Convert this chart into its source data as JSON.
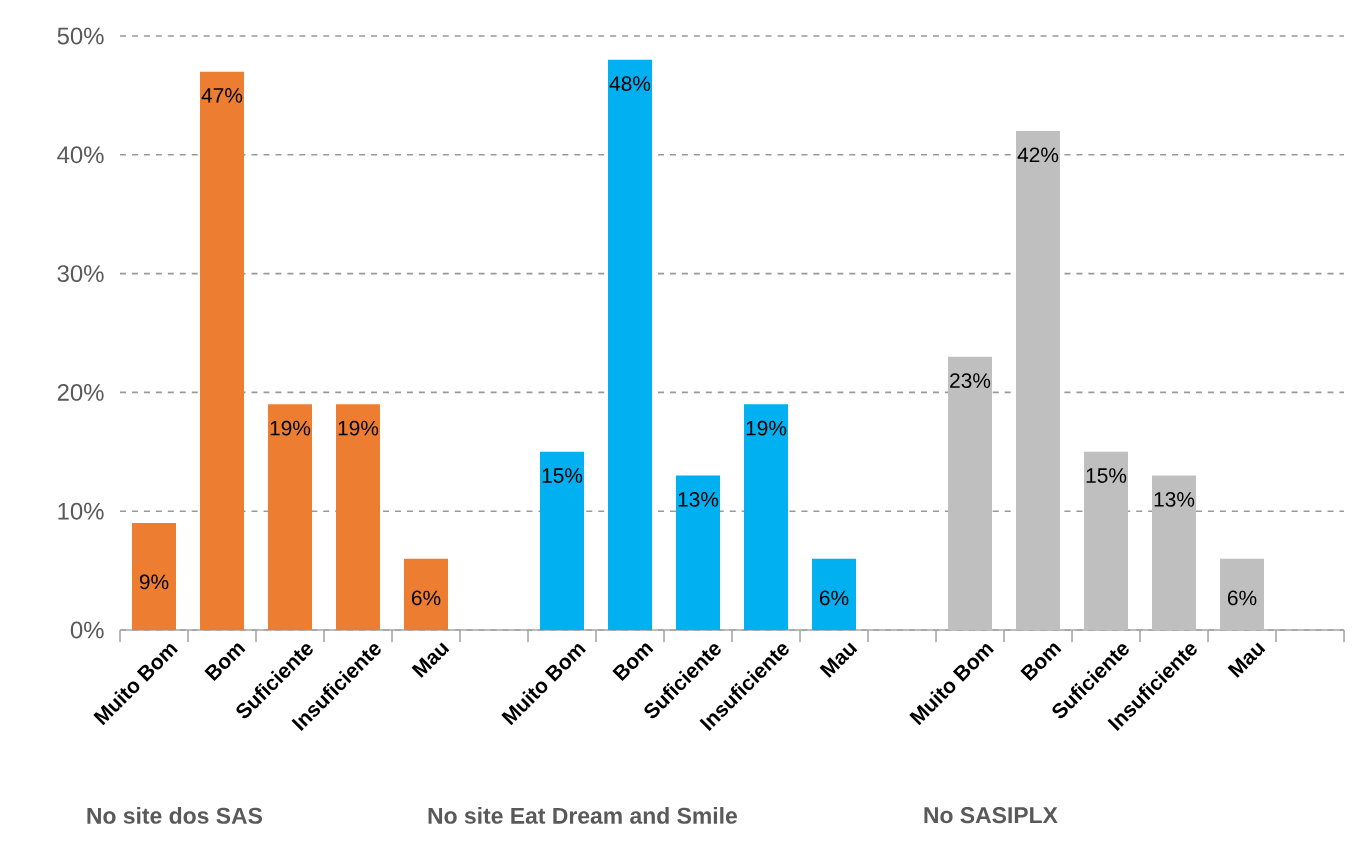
{
  "chart_data": {
    "type": "bar",
    "categories": [
      "Muito Bom",
      "Bom",
      "Suficiente",
      "Insuficiente",
      "Mau",
      null,
      "Muito Bom",
      "Bom",
      "Suficiente",
      "Insuficiente",
      "Mau",
      null,
      "Muito Bom",
      "Bom",
      "Suficiente",
      "Insuficiente",
      "Mau",
      null
    ],
    "values": [
      9,
      47,
      19,
      19,
      6,
      null,
      15,
      48,
      13,
      19,
      6,
      null,
      23,
      42,
      15,
      13,
      6,
      null
    ],
    "colors": [
      "#ed7d31",
      "#ed7d31",
      "#ed7d31",
      "#ed7d31",
      "#ed7d31",
      null,
      "#00b0f0",
      "#00b0f0",
      "#00b0f0",
      "#00b0f0",
      "#00b0f0",
      null,
      "#bfbfbf",
      "#bfbfbf",
      "#bfbfbf",
      "#bfbfbf",
      "#bfbfbf",
      null
    ],
    "value_labels": [
      "9%",
      "47%",
      "19%",
      "19%",
      "6%",
      null,
      "15%",
      "48%",
      "13%",
      "19%",
      "6%",
      null,
      "23%",
      "42%",
      "15%",
      "13%",
      "6%",
      null
    ],
    "ylim": [
      0,
      50
    ],
    "yticks": [
      {
        "value": 0,
        "label": "0%"
      },
      {
        "value": 10,
        "label": "10%"
      },
      {
        "value": 20,
        "label": "20%"
      },
      {
        "value": 30,
        "label": "30%"
      },
      {
        "value": 40,
        "label": "40%"
      },
      {
        "value": 50,
        "label": "50%"
      }
    ],
    "grid": "y",
    "annotations": [
      "No site dos SAS",
      "No site Eat Dream and Smile",
      "No SASIPLX"
    ]
  }
}
